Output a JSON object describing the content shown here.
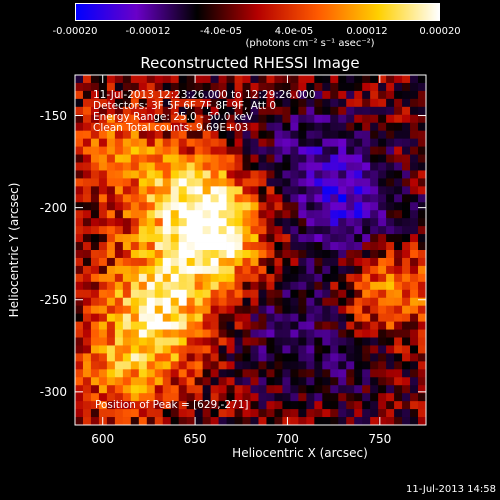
{
  "chart_data": {
    "type": "heatmap",
    "title": "Reconstructed RHESSI Image",
    "xlabel": "Heliocentric X (arcsec)",
    "ylabel": "Heliocentric Y (arcsec)",
    "xlim": [
      585,
      775
    ],
    "ylim": [
      -318,
      -128
    ],
    "x_ticks": [
      600,
      650,
      700,
      750
    ],
    "x_tick_labels": [
      "600",
      "650",
      "700",
      "750"
    ],
    "y_ticks": [
      -150,
      -200,
      -250,
      -300
    ],
    "y_tick_labels": [
      "-150",
      "-200",
      "-250",
      "-300"
    ],
    "colorbar": {
      "range": [
        -0.0002,
        0.0002
      ],
      "tick_labels": [
        "-0.00020",
        "-0.00012",
        "-4.0e-05",
        "4.0e-05",
        "0.00012",
        "0.00020"
      ],
      "tick_values": [
        -0.0002,
        -0.00012,
        -4e-05,
        4e-05,
        0.00012,
        0.0002
      ],
      "units": "(photons cm⁻² s⁻¹ asec⁻²)",
      "colors": [
        "#0000ff",
        "#6a00c8",
        "#000000",
        "#b40000",
        "#ff5a00",
        "#ffd000",
        "#ffffff"
      ]
    },
    "annotations": {
      "time_range": "11-Jul-2013 12:23:26.000 to 12:29:26.000",
      "detectors": "Detectors: 3F 5F 6F 7F 8F 9F, Att 0",
      "energy": "Energy Range: 25.0 - 50.0 keV",
      "clean": "Clean    Total counts: 9.69E+03",
      "peak": "Position of Peak = [629,-271]"
    },
    "peak_position": [
      629,
      -271
    ],
    "grid": false
  },
  "footer": {
    "timestamp": "11-Jul-2013 14:58"
  }
}
